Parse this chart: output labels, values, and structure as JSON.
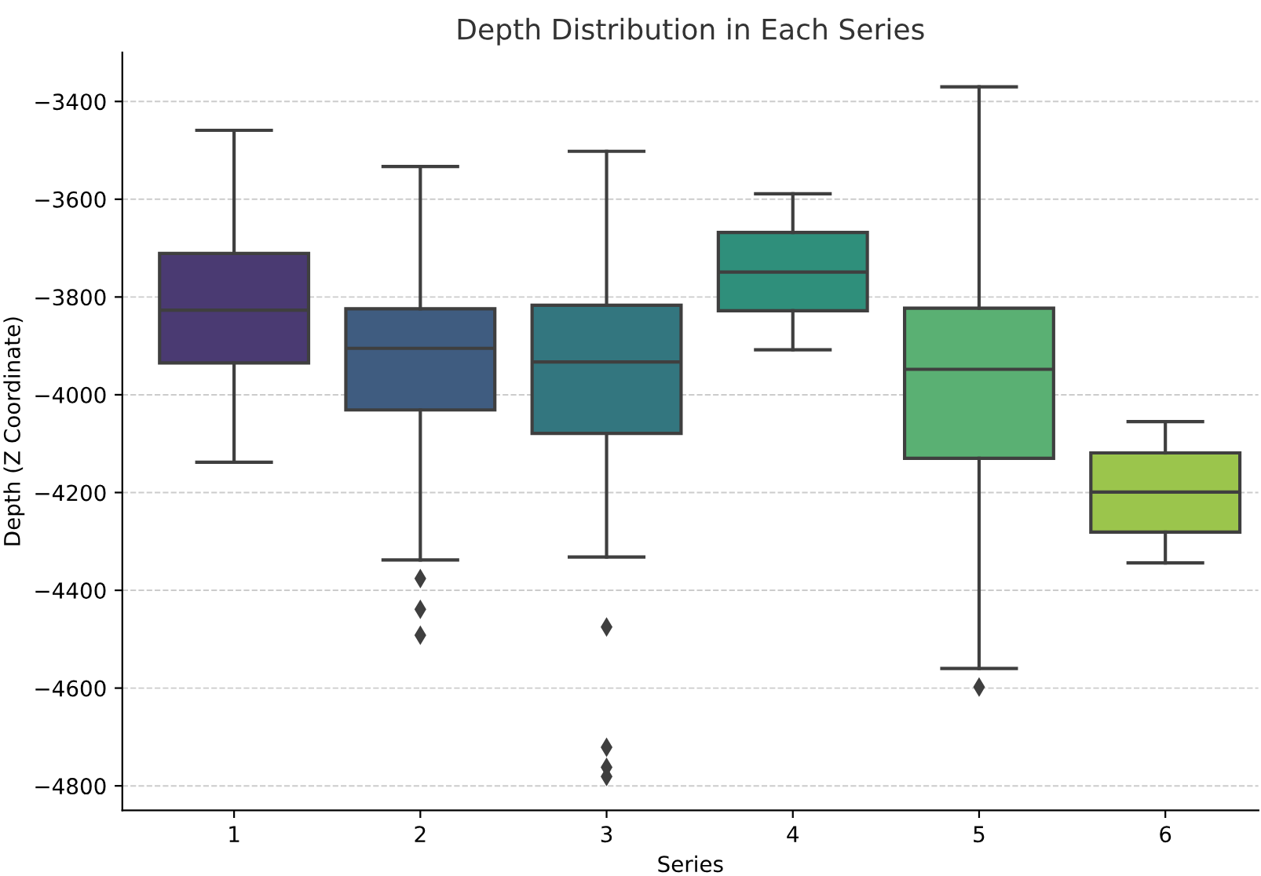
{
  "chart_data": {
    "type": "box",
    "title": "Depth Distribution in Each Series",
    "xlabel": "Series",
    "ylabel": "Depth (Z Coordinate)",
    "categories": [
      "1",
      "2",
      "3",
      "4",
      "5",
      "6"
    ],
    "colors": [
      "#4a3a72",
      "#3f5c80",
      "#33767f",
      "#2f8f7b",
      "#5ab073",
      "#9bc54c"
    ],
    "boxes": [
      {
        "low": -4138,
        "q1": -3935,
        "median": -3827,
        "q3": -3711,
        "high": -3459
      },
      {
        "low": -4338,
        "q1": -4031,
        "median": -3905,
        "q3": -3824,
        "high": -3533,
        "outliers": [
          -4376,
          -4439,
          -4492
        ]
      },
      {
        "low": -4332,
        "q1": -4079,
        "median": -3933,
        "q3": -3817,
        "high": -3502,
        "outliers": [
          -4475,
          -4721,
          -4762,
          -4781
        ]
      },
      {
        "low": -3908,
        "q1": -3828,
        "median": -3749,
        "q3": -3668,
        "high": -3589
      },
      {
        "low": -4560,
        "q1": -4130,
        "median": -3948,
        "q3": -3823,
        "high": -3370,
        "outliers": [
          -4598
        ]
      },
      {
        "low": -4344,
        "q1": -4281,
        "median": -4199,
        "q3": -4119,
        "high": -4055
      }
    ],
    "ylim": [
      -4850,
      -3300
    ],
    "yticks": [
      -4800,
      -4600,
      -4400,
      -4200,
      -4000,
      -3800,
      -3600,
      -3400
    ],
    "grid": "y",
    "marker": "diamond"
  }
}
